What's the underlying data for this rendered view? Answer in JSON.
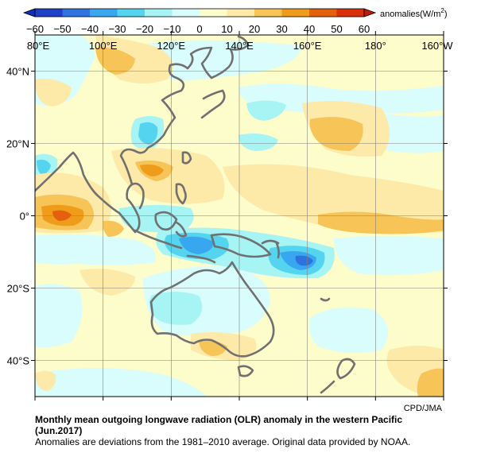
{
  "colorbar": {
    "ticks": [
      "−60",
      "−50",
      "−40",
      "−30",
      "−20",
      "−10",
      "0",
      "10",
      "20",
      "30",
      "40",
      "50",
      "60"
    ],
    "colors": [
      "#1f3fc8",
      "#2e72e0",
      "#38a7f0",
      "#55d4ef",
      "#a6f4f4",
      "#d9fcfd",
      "#fdfccb",
      "#fde9a8",
      "#f6c457",
      "#ef9c1a",
      "#e5600e",
      "#d9300a"
    ],
    "unit_label": "anomalies(W/m",
    "unit_power": "2",
    "unit_close": ")"
  },
  "map": {
    "lon_labels": [
      "80°E",
      "100°E",
      "120°E",
      "140°E",
      "160°E",
      "180°",
      "160°W"
    ],
    "lat_labels": [
      "40°N",
      "20°N",
      "0°",
      "20°S",
      "40°S"
    ],
    "lon_values": [
      80,
      100,
      120,
      140,
      160,
      180,
      200
    ],
    "lat_values": [
      40,
      20,
      0,
      -20,
      -40
    ],
    "lon_range": [
      80,
      200
    ],
    "lat_range": [
      -50,
      50
    ],
    "coastline_color": "#707070"
  },
  "credit": "CPD/JMA",
  "caption": {
    "title_line1": "Monthly mean outgoing longwave radiation (OLR) anomaly in the western Pacific",
    "title_line2": "(Jun.2017)",
    "note": "Anomalies are deviations from the 1981–2010 average. Original data provided by NOAA."
  }
}
